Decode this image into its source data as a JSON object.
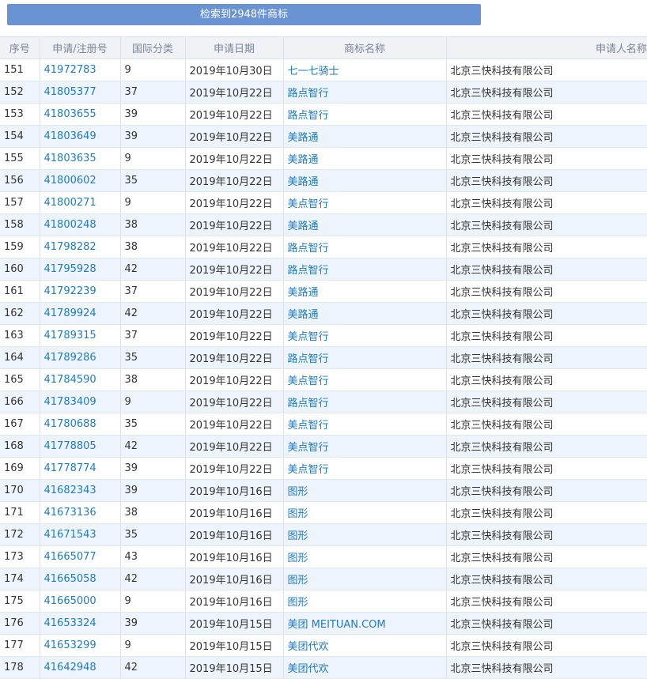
{
  "button": {
    "label": "检索到2948件商标"
  },
  "table": {
    "headers": [
      "序号",
      "申请/注册号",
      "国际分类",
      "申请日期",
      "商标名称",
      "申请人名称"
    ],
    "rows": [
      [
        "151",
        "41972783",
        "9",
        "2019年10月30日",
        "七一七骑士",
        "北京三快科技有限公司"
      ],
      [
        "152",
        "41805377",
        "37",
        "2019年10月22日",
        "路点智行",
        "北京三快科技有限公司"
      ],
      [
        "153",
        "41803655",
        "39",
        "2019年10月22日",
        "路点智行",
        "北京三快科技有限公司"
      ],
      [
        "154",
        "41803649",
        "39",
        "2019年10月22日",
        "美路通",
        "北京三快科技有限公司"
      ],
      [
        "155",
        "41803635",
        "9",
        "2019年10月22日",
        "美路通",
        "北京三快科技有限公司"
      ],
      [
        "156",
        "41800602",
        "35",
        "2019年10月22日",
        "美路通",
        "北京三快科技有限公司"
      ],
      [
        "157",
        "41800271",
        "9",
        "2019年10月22日",
        "美点智行",
        "北京三快科技有限公司"
      ],
      [
        "158",
        "41800248",
        "38",
        "2019年10月22日",
        "美路通",
        "北京三快科技有限公司"
      ],
      [
        "159",
        "41798282",
        "38",
        "2019年10月22日",
        "路点智行",
        "北京三快科技有限公司"
      ],
      [
        "160",
        "41795928",
        "42",
        "2019年10月22日",
        "路点智行",
        "北京三快科技有限公司"
      ],
      [
        "161",
        "41792239",
        "37",
        "2019年10月22日",
        "美路通",
        "北京三快科技有限公司"
      ],
      [
        "162",
        "41789924",
        "42",
        "2019年10月22日",
        "美路通",
        "北京三快科技有限公司"
      ],
      [
        "163",
        "41789315",
        "37",
        "2019年10月22日",
        "美点智行",
        "北京三快科技有限公司"
      ],
      [
        "164",
        "41789286",
        "35",
        "2019年10月22日",
        "路点智行",
        "北京三快科技有限公司"
      ],
      [
        "165",
        "41784590",
        "38",
        "2019年10月22日",
        "美点智行",
        "北京三快科技有限公司"
      ],
      [
        "166",
        "41783409",
        "9",
        "2019年10月22日",
        "路点智行",
        "北京三快科技有限公司"
      ],
      [
        "167",
        "41780688",
        "35",
        "2019年10月22日",
        "美点智行",
        "北京三快科技有限公司"
      ],
      [
        "168",
        "41778805",
        "42",
        "2019年10月22日",
        "美点智行",
        "北京三快科技有限公司"
      ],
      [
        "169",
        "41778774",
        "39",
        "2019年10月22日",
        "美点智行",
        "北京三快科技有限公司"
      ],
      [
        "170",
        "41682343",
        "39",
        "2019年10月16日",
        "图形",
        "北京三快科技有限公司"
      ],
      [
        "171",
        "41673136",
        "38",
        "2019年10月16日",
        "图形",
        "北京三快科技有限公司"
      ],
      [
        "172",
        "41671543",
        "35",
        "2019年10月16日",
        "图形",
        "北京三快科技有限公司"
      ],
      [
        "173",
        "41665077",
        "43",
        "2019年10月16日",
        "图形",
        "北京三快科技有限公司"
      ],
      [
        "174",
        "41665058",
        "42",
        "2019年10月16日",
        "图形",
        "北京三快科技有限公司"
      ],
      [
        "175",
        "41665000",
        "9",
        "2019年10月16日",
        "图形",
        "北京三快科技有限公司"
      ],
      [
        "176",
        "41653324",
        "39",
        "2019年10月15日",
        "美团 MEITUAN.COM",
        "北京三快科技有限公司"
      ],
      [
        "177",
        "41653299",
        "9",
        "2019年10月15日",
        "美团代欢",
        "北京三快科技有限公司"
      ],
      [
        "178",
        "41642948",
        "42",
        "2019年10月15日",
        "美团代欢",
        "北京三快科技有限公司"
      ]
    ]
  }
}
